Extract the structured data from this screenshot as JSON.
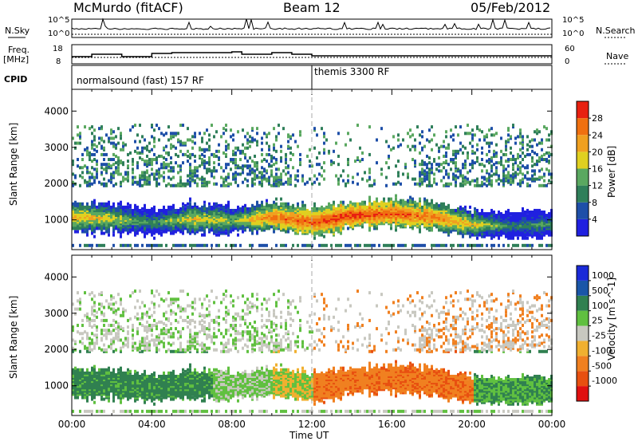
{
  "header": {
    "title": "McMurdo (fitACF)",
    "beam": "Beam 12",
    "date": "05/Feb/2012"
  },
  "summary_panel": {
    "nsky_label": "N.Sky",
    "nsearch_label": "N.Search",
    "freq_label_1": "Freq.",
    "freq_label_2": "[MHz]",
    "nave_label": "Nave",
    "cpid_label": "CPID",
    "noise_ticks": [
      "10^5",
      "10^0"
    ],
    "freq_ticks": [
      "18",
      "8"
    ],
    "nave_ticks": [
      "60",
      "0"
    ]
  },
  "cpid_segments": [
    {
      "label": "normalsound (fast) 157 RF",
      "start": 0,
      "end": 12
    },
    {
      "label": "themis 3300 RF",
      "start": 12,
      "end": 24
    }
  ],
  "colors": {
    "power": [
      "#2020e0",
      "#1e4fa8",
      "#2f7f5a",
      "#5aa860",
      "#e0d020",
      "#f0a020",
      "#f07010",
      "#e82010"
    ],
    "velocity": [
      "#e01010",
      "#e85010",
      "#f08020",
      "#f0b030",
      "#c8c8c0",
      "#60c040",
      "#308050",
      "#1a56a8",
      "#1a2ad8"
    ]
  },
  "chart_data": [
    {
      "type": "heatmap",
      "name": "power",
      "x_label": "Time UT",
      "y_label": "Slant Range [km]",
      "x_ticks": [
        "00:00",
        "04:00",
        "08:00",
        "12:00",
        "16:00",
        "20:00",
        "00:00"
      ],
      "y_ticks": [
        1000,
        2000,
        3000,
        4000
      ],
      "xlim": [
        0,
        24
      ],
      "ylim": [
        180,
        4600
      ],
      "colorbar_label": "Power [dB]",
      "colorbar_ticks": [
        4,
        8,
        12,
        16,
        20,
        24,
        28
      ],
      "clim": [
        0,
        32
      ],
      "band_profile_hours": [
        0,
        2,
        4,
        6,
        8,
        10,
        12,
        14,
        16,
        18,
        20,
        22,
        24
      ],
      "band_profile_center_km": [
        1050,
        1000,
        900,
        1000,
        950,
        1050,
        900,
        1100,
        1150,
        1050,
        850,
        800,
        850
      ],
      "band_profile_peak_db": [
        22,
        18,
        12,
        20,
        16,
        26,
        28,
        30,
        28,
        26,
        20,
        10,
        14
      ]
    },
    {
      "type": "heatmap",
      "name": "velocity",
      "x_label": "Time UT",
      "y_label": "Slant Range [km]",
      "x_ticks": [
        "00:00",
        "04:00",
        "08:00",
        "12:00",
        "16:00",
        "20:00",
        "00:00"
      ],
      "y_ticks": [
        1000,
        2000,
        3000,
        4000
      ],
      "xlim": [
        0,
        24
      ],
      "ylim": [
        180,
        4600
      ],
      "colorbar_label": "Velocity [m s^-1]",
      "colorbar_ticks": [
        "1000",
        "500",
        "100",
        "25",
        "-25",
        "-100",
        "-500",
        "-1000"
      ],
      "clim": [
        -1000,
        1000
      ]
    }
  ]
}
